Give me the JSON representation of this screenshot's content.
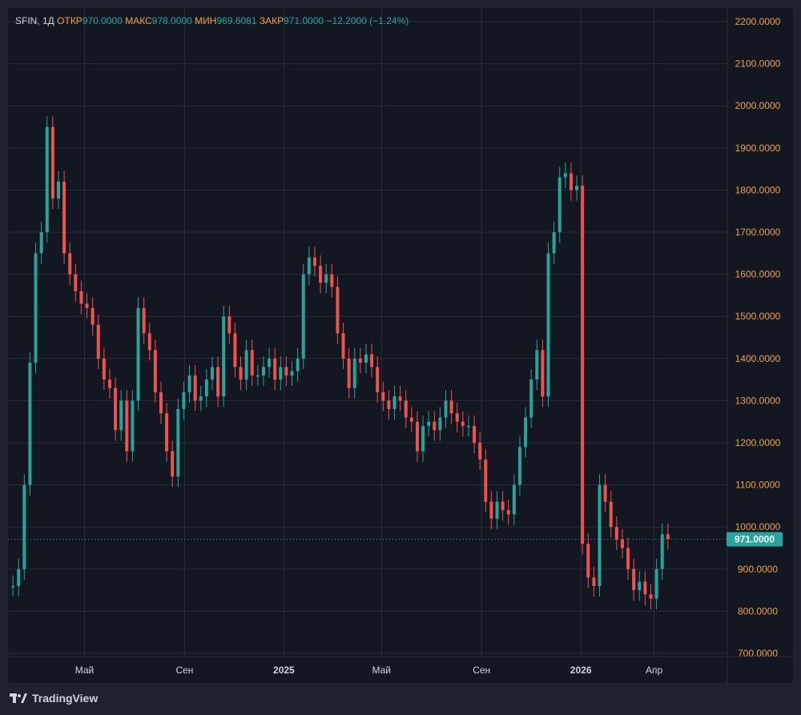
{
  "legend": {
    "symbol": "SFIN, 1Д",
    "open_label": "ОТКР",
    "open": "970.0000",
    "high_label": "МАКС",
    "high": "978.0000",
    "low_label": "МИН",
    "low": "969.6081",
    "close_label": "ЗАКР",
    "close": "971.0000",
    "change": "−12.2000 (−1.24%)"
  },
  "brand": {
    "name": "TradingView"
  },
  "price_tag": "971.0000",
  "colors": {
    "up": "#26a69a",
    "down": "#ef5350",
    "axis_text": "#d1d4dc",
    "grid": "#2a2e39",
    "label_orange": "#f0a04b"
  },
  "chart_data": {
    "type": "candlestick",
    "ylim": [
      700,
      2200
    ],
    "y_ticks": [
      "2200.0000",
      "2100.0000",
      "2000.0000",
      "1900.0000",
      "1800.0000",
      "1700.0000",
      "1600.0000",
      "1500.0000",
      "1400.0000",
      "1300.0000",
      "1200.0000",
      "1100.0000",
      "1000.0000",
      "900.0000",
      "800.0000",
      "700.0000"
    ],
    "x_ticks": [
      {
        "label": "Май",
        "date": "2024-05-01",
        "bold": false
      },
      {
        "label": "Сен",
        "date": "2024-09-01",
        "bold": false
      },
      {
        "label": "2025",
        "date": "2025-01-01",
        "bold": true
      },
      {
        "label": "Май",
        "date": "2025-05-01",
        "bold": false
      },
      {
        "label": "Сен",
        "date": "2025-09-01",
        "bold": false
      },
      {
        "label": "2026",
        "date": "2026-01-01",
        "bold": true
      },
      {
        "label": "Апр",
        "date": "2026-04-01",
        "bold": false
      }
    ],
    "last_price": 971,
    "series": [
      {
        "date": "2024-02-03",
        "close": 860
      },
      {
        "date": "2024-02-10",
        "close": 900
      },
      {
        "date": "2024-02-17",
        "close": 1100
      },
      {
        "date": "2024-02-24",
        "close": 1390
      },
      {
        "date": "2024-03-02",
        "close": 1650
      },
      {
        "date": "2024-03-09",
        "close": 1700
      },
      {
        "date": "2024-03-16",
        "close": 1950
      },
      {
        "date": "2024-03-23",
        "close": 1780
      },
      {
        "date": "2024-03-30",
        "close": 1820
      },
      {
        "date": "2024-04-06",
        "close": 1650
      },
      {
        "date": "2024-04-13",
        "close": 1600
      },
      {
        "date": "2024-04-20",
        "close": 1560
      },
      {
        "date": "2024-04-27",
        "close": 1530
      },
      {
        "date": "2024-05-04",
        "close": 1520
      },
      {
        "date": "2024-05-11",
        "close": 1480
      },
      {
        "date": "2024-05-18",
        "close": 1400
      },
      {
        "date": "2024-05-25",
        "close": 1350
      },
      {
        "date": "2024-06-01",
        "close": 1330
      },
      {
        "date": "2024-06-08",
        "close": 1230
      },
      {
        "date": "2024-06-15",
        "close": 1300
      },
      {
        "date": "2024-06-22",
        "close": 1180
      },
      {
        "date": "2024-06-29",
        "close": 1300
      },
      {
        "date": "2024-07-06",
        "close": 1520
      },
      {
        "date": "2024-07-13",
        "close": 1460
      },
      {
        "date": "2024-07-20",
        "close": 1420
      },
      {
        "date": "2024-07-27",
        "close": 1320
      },
      {
        "date": "2024-08-03",
        "close": 1270
      },
      {
        "date": "2024-08-10",
        "close": 1180
      },
      {
        "date": "2024-08-17",
        "close": 1120
      },
      {
        "date": "2024-08-24",
        "close": 1280
      },
      {
        "date": "2024-08-31",
        "close": 1320
      },
      {
        "date": "2024-09-07",
        "close": 1360
      },
      {
        "date": "2024-09-14",
        "close": 1300
      },
      {
        "date": "2024-09-21",
        "close": 1310
      },
      {
        "date": "2024-09-28",
        "close": 1350
      },
      {
        "date": "2024-10-05",
        "close": 1380
      },
      {
        "date": "2024-10-12",
        "close": 1310
      },
      {
        "date": "2024-10-19",
        "close": 1500
      },
      {
        "date": "2024-10-26",
        "close": 1460
      },
      {
        "date": "2024-11-02",
        "close": 1380
      },
      {
        "date": "2024-11-09",
        "close": 1350
      },
      {
        "date": "2024-11-16",
        "close": 1420
      },
      {
        "date": "2024-11-23",
        "close": 1360
      },
      {
        "date": "2024-11-30",
        "close": 1360
      },
      {
        "date": "2024-12-07",
        "close": 1380
      },
      {
        "date": "2024-12-14",
        "close": 1400
      },
      {
        "date": "2024-12-21",
        "close": 1350
      },
      {
        "date": "2024-12-28",
        "close": 1380
      },
      {
        "date": "2025-01-04",
        "close": 1360
      },
      {
        "date": "2025-01-11",
        "close": 1370
      },
      {
        "date": "2025-01-18",
        "close": 1400
      },
      {
        "date": "2025-01-25",
        "close": 1600
      },
      {
        "date": "2025-02-01",
        "close": 1640
      },
      {
        "date": "2025-02-08",
        "close": 1620
      },
      {
        "date": "2025-02-15",
        "close": 1580
      },
      {
        "date": "2025-02-22",
        "close": 1600
      },
      {
        "date": "2025-03-01",
        "close": 1570
      },
      {
        "date": "2025-03-08",
        "close": 1460
      },
      {
        "date": "2025-03-15",
        "close": 1400
      },
      {
        "date": "2025-03-22",
        "close": 1330
      },
      {
        "date": "2025-03-29",
        "close": 1400
      },
      {
        "date": "2025-04-05",
        "close": 1390
      },
      {
        "date": "2025-04-12",
        "close": 1410
      },
      {
        "date": "2025-04-19",
        "close": 1380
      },
      {
        "date": "2025-04-26",
        "close": 1320
      },
      {
        "date": "2025-05-03",
        "close": 1300
      },
      {
        "date": "2025-05-10",
        "close": 1280
      },
      {
        "date": "2025-05-17",
        "close": 1310
      },
      {
        "date": "2025-05-24",
        "close": 1300
      },
      {
        "date": "2025-05-31",
        "close": 1260
      },
      {
        "date": "2025-06-07",
        "close": 1250
      },
      {
        "date": "2025-06-14",
        "close": 1180
      },
      {
        "date": "2025-06-21",
        "close": 1240
      },
      {
        "date": "2025-06-28",
        "close": 1250
      },
      {
        "date": "2025-07-05",
        "close": 1230
      },
      {
        "date": "2025-07-12",
        "close": 1260
      },
      {
        "date": "2025-07-19",
        "close": 1300
      },
      {
        "date": "2025-07-26",
        "close": 1270
      },
      {
        "date": "2025-08-02",
        "close": 1250
      },
      {
        "date": "2025-08-09",
        "close": 1240
      },
      {
        "date": "2025-08-16",
        "close": 1240
      },
      {
        "date": "2025-08-23",
        "close": 1200
      },
      {
        "date": "2025-08-30",
        "close": 1160
      },
      {
        "date": "2025-09-06",
        "close": 1060
      },
      {
        "date": "2025-09-13",
        "close": 1020
      },
      {
        "date": "2025-09-20",
        "close": 1060
      },
      {
        "date": "2025-09-27",
        "close": 1040
      },
      {
        "date": "2025-10-04",
        "close": 1030
      },
      {
        "date": "2025-10-11",
        "close": 1100
      },
      {
        "date": "2025-10-18",
        "close": 1190
      },
      {
        "date": "2025-10-25",
        "close": 1260
      },
      {
        "date": "2025-11-01",
        "close": 1350
      },
      {
        "date": "2025-11-08",
        "close": 1420
      },
      {
        "date": "2025-11-15",
        "close": 1310
      },
      {
        "date": "2025-11-22",
        "close": 1650
      },
      {
        "date": "2025-11-29",
        "close": 1700
      },
      {
        "date": "2025-12-06",
        "close": 1830
      },
      {
        "date": "2025-12-13",
        "close": 1840
      },
      {
        "date": "2025-12-20",
        "close": 1800
      },
      {
        "date": "2025-12-27",
        "close": 1810
      },
      {
        "date": "2026-01-03",
        "close": 960
      },
      {
        "date": "2026-01-10",
        "close": 880
      },
      {
        "date": "2026-01-17",
        "close": 860
      },
      {
        "date": "2026-01-24",
        "close": 1100
      },
      {
        "date": "2026-01-31",
        "close": 1060
      },
      {
        "date": "2026-02-07",
        "close": 1000
      },
      {
        "date": "2026-02-14",
        "close": 970
      },
      {
        "date": "2026-02-21",
        "close": 950
      },
      {
        "date": "2026-02-28",
        "close": 900
      },
      {
        "date": "2026-03-07",
        "close": 850
      },
      {
        "date": "2026-03-14",
        "close": 870
      },
      {
        "date": "2026-03-21",
        "close": 840
      },
      {
        "date": "2026-03-28",
        "close": 830
      },
      {
        "date": "2026-04-04",
        "close": 900
      },
      {
        "date": "2026-04-11",
        "close": 983
      },
      {
        "date": "2026-04-18",
        "close": 971
      }
    ]
  }
}
